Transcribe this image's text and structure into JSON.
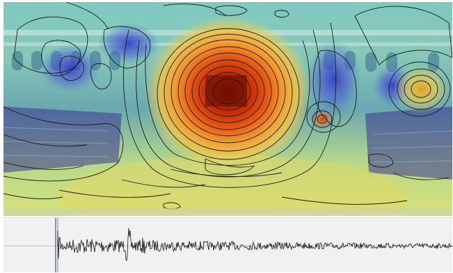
{
  "figure": {
    "panorama": {
      "scene": "auditorium-360-panorama",
      "heatmap_colormap": [
        "#2a2ad0",
        "#3fa0e8",
        "#5ad8c8",
        "#d8e070",
        "#f0a040",
        "#e03a10",
        "#b01a00"
      ],
      "contour_color": "#1a1a1a"
    },
    "waveform": {
      "background": "#f1f1f1",
      "trace_color": "#111111",
      "marker_color": "#5a8fd6"
    }
  }
}
